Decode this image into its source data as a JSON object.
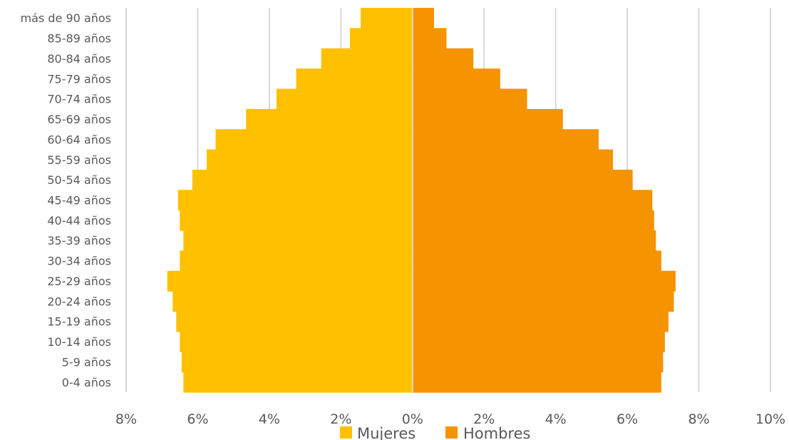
{
  "chart_data": {
    "type": "bar",
    "orientation": "horizontal",
    "title": "",
    "categories": [
      "0-4 años",
      "5-9 años",
      "10-14 años",
      "15-19 años",
      "20-24 años",
      "25-29 años",
      "30-34 años",
      "35-39 años",
      "40-44 años",
      "45-49 años",
      "50-54 años",
      "55-59 años",
      "60-64 años",
      "65-69 años",
      "70-74 años",
      "75-79 años",
      "80-84 años",
      "85-89 años",
      "más de 90 años"
    ],
    "series": [
      {
        "name": "Mujeres",
        "color": "#FFC000",
        "values": [
          6.4,
          6.45,
          6.5,
          6.6,
          6.7,
          6.85,
          6.5,
          6.4,
          6.5,
          6.55,
          6.15,
          5.75,
          5.5,
          4.65,
          3.8,
          3.25,
          2.55,
          1.75,
          1.45
        ]
      },
      {
        "name": "Hombres",
        "color": "#F59300",
        "values": [
          6.95,
          7.0,
          7.05,
          7.15,
          7.3,
          7.35,
          6.95,
          6.8,
          6.75,
          6.7,
          6.15,
          5.6,
          5.2,
          4.2,
          3.2,
          2.45,
          1.7,
          0.95,
          0.6
        ]
      }
    ],
    "xlim": [
      -8,
      10
    ],
    "x_ticks": [
      "8%",
      "6%",
      "4%",
      "2%",
      "0%",
      "2%",
      "4%",
      "6%",
      "8%",
      "10%"
    ],
    "grid": true,
    "legend_position": "bottom"
  }
}
